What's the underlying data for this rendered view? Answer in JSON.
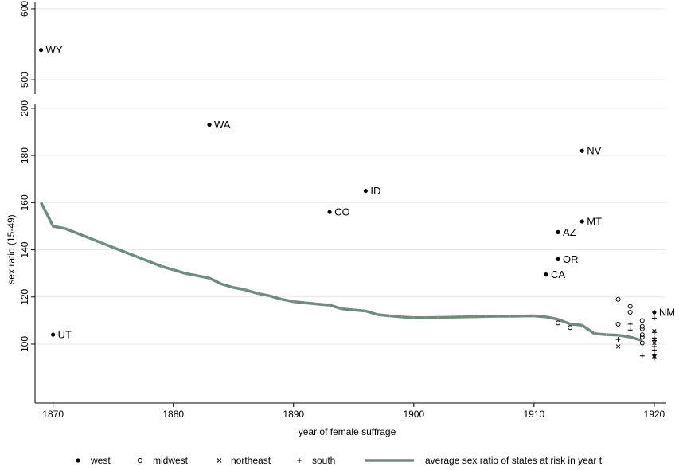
{
  "chart_data": {
    "type": "scatter",
    "title": "",
    "xlabel": "year of female suffrage",
    "ylabel": "sex ratio (15-49)",
    "xlim": [
      1868.5,
      1921
    ],
    "x_ticks": [
      1870,
      1880,
      1890,
      1900,
      1910,
      1920
    ],
    "panels": [
      {
        "name": "upper",
        "ylim": [
          480,
          610
        ],
        "y_ticks": [
          500,
          600
        ]
      },
      {
        "name": "lower",
        "ylim": [
          75,
          202
        ],
        "y_ticks": [
          100,
          120,
          140,
          160,
          180,
          200
        ]
      }
    ],
    "grid": true,
    "legend_position": "bottom",
    "legend": {
      "west": "west",
      "midwest": "midwest",
      "northeast": "northeast",
      "south": "south",
      "average": "average sex ratio of states at risk in year t"
    },
    "colors": {
      "average_line": "#6e8b7d",
      "markers": "#000000"
    },
    "series": [
      {
        "key": "west",
        "marker": "filled-circle",
        "points": [
          {
            "x": 1869,
            "y": 542,
            "label": "WY"
          },
          {
            "x": 1870,
            "y": 104,
            "label": "UT"
          },
          {
            "x": 1883,
            "y": 193,
            "label": "WA"
          },
          {
            "x": 1893,
            "y": 156,
            "label": "CO"
          },
          {
            "x": 1896,
            "y": 165,
            "label": "ID"
          },
          {
            "x": 1911,
            "y": 129.5,
            "label": "CA"
          },
          {
            "x": 1912,
            "y": 147.5,
            "label": "AZ"
          },
          {
            "x": 1912,
            "y": 136,
            "label": "OR"
          },
          {
            "x": 1914,
            "y": 152,
            "label": "MT"
          },
          {
            "x": 1914,
            "y": 182,
            "label": "NV"
          },
          {
            "x": 1920,
            "y": 113.5,
            "label": "NM"
          }
        ]
      },
      {
        "key": "midwest",
        "marker": "hollow-circle",
        "points": [
          {
            "x": 1912,
            "y": 109
          },
          {
            "x": 1913,
            "y": 107
          },
          {
            "x": 1917,
            "y": 119
          },
          {
            "x": 1917,
            "y": 108.5
          },
          {
            "x": 1918,
            "y": 116
          },
          {
            "x": 1918,
            "y": 113.5
          },
          {
            "x": 1919,
            "y": 110
          },
          {
            "x": 1919,
            "y": 107.5
          },
          {
            "x": 1919,
            "y": 106.5
          },
          {
            "x": 1919,
            "y": 104
          },
          {
            "x": 1919,
            "y": 103
          },
          {
            "x": 1919,
            "y": 100.5
          }
        ]
      },
      {
        "key": "northeast",
        "marker": "x",
        "points": [
          {
            "x": 1917,
            "y": 99
          },
          {
            "x": 1920,
            "y": 105.5
          },
          {
            "x": 1920,
            "y": 102
          },
          {
            "x": 1920,
            "y": 100.5
          },
          {
            "x": 1920,
            "y": 95
          },
          {
            "x": 1920,
            "y": 94.5
          }
        ]
      },
      {
        "key": "south",
        "marker": "plus",
        "points": [
          {
            "x": 1917,
            "y": 102
          },
          {
            "x": 1918,
            "y": 108.5
          },
          {
            "x": 1918,
            "y": 106
          },
          {
            "x": 1919,
            "y": 95
          },
          {
            "x": 1920,
            "y": 111
          },
          {
            "x": 1920,
            "y": 105
          },
          {
            "x": 1920,
            "y": 102.5
          },
          {
            "x": 1920,
            "y": 101.5
          },
          {
            "x": 1920,
            "y": 99
          },
          {
            "x": 1920,
            "y": 97.5
          },
          {
            "x": 1920,
            "y": 95.5
          },
          {
            "x": 1920,
            "y": 94
          }
        ]
      }
    ],
    "average_line": {
      "x": [
        1869,
        1870,
        1871,
        1872,
        1873,
        1874,
        1875,
        1876,
        1877,
        1878,
        1879,
        1880,
        1881,
        1882,
        1883,
        1884,
        1885,
        1886,
        1887,
        1888,
        1889,
        1890,
        1891,
        1892,
        1893,
        1894,
        1895,
        1896,
        1897,
        1898,
        1899,
        1900,
        1901,
        1902,
        1903,
        1904,
        1905,
        1906,
        1907,
        1908,
        1909,
        1910,
        1911,
        1912,
        1913,
        1914,
        1915,
        1916,
        1917,
        1918,
        1919
      ],
      "y": [
        160,
        150,
        149,
        147,
        145,
        143,
        141,
        139,
        137,
        135,
        133,
        131.5,
        130,
        129,
        128,
        125.5,
        124,
        123,
        121.5,
        120.5,
        119,
        118,
        117.5,
        117,
        116.5,
        115,
        114.5,
        114,
        112.5,
        112,
        111.5,
        111.2,
        111.2,
        111.3,
        111.4,
        111.5,
        111.6,
        111.7,
        111.8,
        111.8,
        111.9,
        112,
        111.5,
        110.5,
        108.5,
        108,
        104.5,
        104,
        103.8,
        103,
        101.5
      ]
    }
  }
}
